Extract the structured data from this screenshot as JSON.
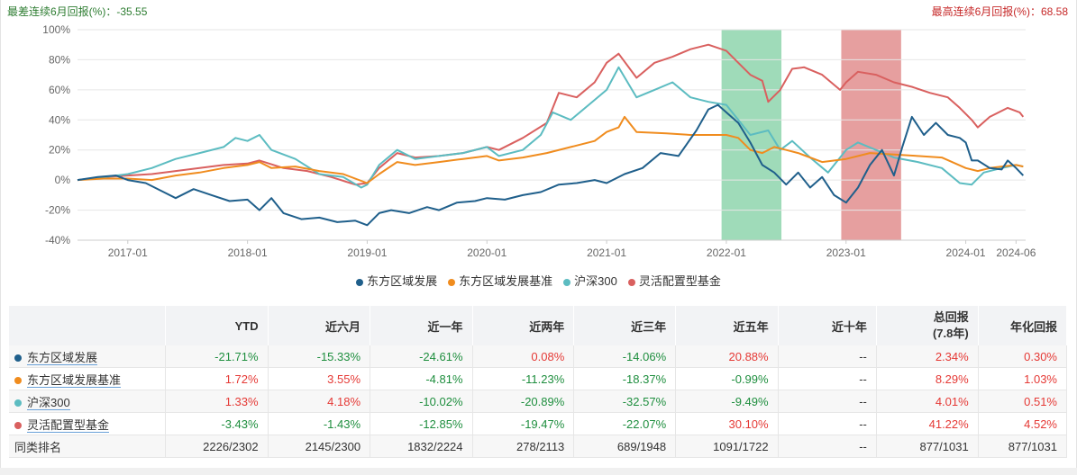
{
  "banner": {
    "worst": "最差连续6月回报(%)：-35.55",
    "best": "最高连续6月回报(%)：68.58"
  },
  "chart_data": {
    "type": "line",
    "xlabel": "",
    "ylabel": "",
    "ylim": [
      -40,
      100
    ],
    "yticks": [
      "100%",
      "80%",
      "60%",
      "40%",
      "20%",
      "0%",
      "-20%",
      "-40%"
    ],
    "ytick_values": [
      100,
      80,
      60,
      40,
      20,
      0,
      -20,
      -40
    ],
    "xticks": [
      "2017-01",
      "2018-01",
      "2019-01",
      "2020-01",
      "2021-01",
      "2022-01",
      "2023-01",
      "2024-01",
      "2024-06"
    ],
    "xtick_values": [
      2017.0,
      2018.0,
      2019.0,
      2020.0,
      2021.0,
      2022.0,
      2023.0,
      2024.0,
      2024.42
    ],
    "x_range": [
      2016.58,
      2024.5
    ],
    "grid": true,
    "legend": "bottom",
    "highlight_bands": [
      {
        "kind": "best",
        "x0": 2021.96,
        "x1": 2022.46,
        "color": "#7fcfa1"
      },
      {
        "kind": "worst",
        "x0": 2022.96,
        "x1": 2023.46,
        "color": "#de7f7f"
      }
    ],
    "series": [
      {
        "name": "东方区域发展",
        "color": "#1f5f8b",
        "points": [
          [
            2016.58,
            0
          ],
          [
            2016.75,
            2
          ],
          [
            2016.9,
            3
          ],
          [
            2017.0,
            0
          ],
          [
            2017.15,
            -2
          ],
          [
            2017.3,
            -8
          ],
          [
            2017.4,
            -12
          ],
          [
            2017.55,
            -6
          ],
          [
            2017.7,
            -10
          ],
          [
            2017.85,
            -14
          ],
          [
            2018.0,
            -13
          ],
          [
            2018.1,
            -20
          ],
          [
            2018.2,
            -12
          ],
          [
            2018.3,
            -22
          ],
          [
            2018.45,
            -26
          ],
          [
            2018.6,
            -25
          ],
          [
            2018.75,
            -28
          ],
          [
            2018.9,
            -27
          ],
          [
            2019.0,
            -30
          ],
          [
            2019.1,
            -22
          ],
          [
            2019.2,
            -20
          ],
          [
            2019.35,
            -22
          ],
          [
            2019.5,
            -18
          ],
          [
            2019.6,
            -20
          ],
          [
            2019.75,
            -15
          ],
          [
            2019.9,
            -14
          ],
          [
            2020.0,
            -12
          ],
          [
            2020.15,
            -13
          ],
          [
            2020.3,
            -10
          ],
          [
            2020.45,
            -8
          ],
          [
            2020.6,
            -3
          ],
          [
            2020.75,
            -2
          ],
          [
            2020.9,
            0
          ],
          [
            2021.0,
            -2
          ],
          [
            2021.15,
            4
          ],
          [
            2021.3,
            8
          ],
          [
            2021.45,
            18
          ],
          [
            2021.6,
            16
          ],
          [
            2021.75,
            33
          ],
          [
            2021.85,
            47
          ],
          [
            2021.93,
            50
          ],
          [
            2022.0,
            45
          ],
          [
            2022.1,
            38
          ],
          [
            2022.2,
            25
          ],
          [
            2022.3,
            10
          ],
          [
            2022.4,
            5
          ],
          [
            2022.5,
            -3
          ],
          [
            2022.6,
            5
          ],
          [
            2022.7,
            -5
          ],
          [
            2022.8,
            2
          ],
          [
            2022.9,
            -10
          ],
          [
            2023.0,
            -15
          ],
          [
            2023.1,
            -5
          ],
          [
            2023.2,
            10
          ],
          [
            2023.3,
            20
          ],
          [
            2023.4,
            3
          ],
          [
            2023.47,
            22
          ],
          [
            2023.55,
            42
          ],
          [
            2023.65,
            30
          ],
          [
            2023.75,
            38
          ],
          [
            2023.85,
            30
          ],
          [
            2023.95,
            28
          ],
          [
            2024.0,
            25
          ],
          [
            2024.05,
            13
          ],
          [
            2024.1,
            13
          ],
          [
            2024.2,
            8
          ],
          [
            2024.3,
            7
          ],
          [
            2024.35,
            13
          ],
          [
            2024.42,
            8
          ],
          [
            2024.48,
            3
          ]
        ]
      },
      {
        "name": "东方区域发展基准",
        "color": "#f08c1e",
        "points": [
          [
            2016.58,
            0
          ],
          [
            2016.8,
            1
          ],
          [
            2017.0,
            1
          ],
          [
            2017.2,
            0
          ],
          [
            2017.4,
            3
          ],
          [
            2017.6,
            5
          ],
          [
            2017.8,
            8
          ],
          [
            2018.0,
            10
          ],
          [
            2018.1,
            12
          ],
          [
            2018.2,
            8
          ],
          [
            2018.4,
            9
          ],
          [
            2018.6,
            6
          ],
          [
            2018.8,
            4
          ],
          [
            2019.0,
            -2
          ],
          [
            2019.1,
            4
          ],
          [
            2019.25,
            12
          ],
          [
            2019.4,
            10
          ],
          [
            2019.6,
            12
          ],
          [
            2019.8,
            14
          ],
          [
            2020.0,
            16
          ],
          [
            2020.1,
            13
          ],
          [
            2020.3,
            15
          ],
          [
            2020.5,
            18
          ],
          [
            2020.7,
            22
          ],
          [
            2020.9,
            26
          ],
          [
            2021.0,
            32
          ],
          [
            2021.1,
            35
          ],
          [
            2021.15,
            42
          ],
          [
            2021.25,
            32
          ],
          [
            2021.5,
            31
          ],
          [
            2021.7,
            30
          ],
          [
            2021.9,
            30
          ],
          [
            2022.0,
            30
          ],
          [
            2022.1,
            28
          ],
          [
            2022.2,
            20
          ],
          [
            2022.3,
            18
          ],
          [
            2022.4,
            22
          ],
          [
            2022.5,
            20
          ],
          [
            2022.6,
            18
          ],
          [
            2022.8,
            12
          ],
          [
            2023.0,
            14
          ],
          [
            2023.2,
            18
          ],
          [
            2023.4,
            17
          ],
          [
            2023.6,
            16
          ],
          [
            2023.8,
            15
          ],
          [
            2024.0,
            8
          ],
          [
            2024.1,
            6
          ],
          [
            2024.2,
            8
          ],
          [
            2024.3,
            9
          ],
          [
            2024.42,
            10
          ],
          [
            2024.48,
            9
          ]
        ]
      },
      {
        "name": "沪深300",
        "color": "#5cbcc1",
        "points": [
          [
            2016.58,
            0
          ],
          [
            2016.8,
            2
          ],
          [
            2017.0,
            4
          ],
          [
            2017.2,
            8
          ],
          [
            2017.4,
            14
          ],
          [
            2017.6,
            18
          ],
          [
            2017.8,
            22
          ],
          [
            2017.9,
            28
          ],
          [
            2018.0,
            26
          ],
          [
            2018.1,
            30
          ],
          [
            2018.2,
            20
          ],
          [
            2018.4,
            14
          ],
          [
            2018.6,
            4
          ],
          [
            2018.8,
            2
          ],
          [
            2018.95,
            -5
          ],
          [
            2019.0,
            -3
          ],
          [
            2019.1,
            10
          ],
          [
            2019.25,
            20
          ],
          [
            2019.4,
            14
          ],
          [
            2019.6,
            16
          ],
          [
            2019.8,
            18
          ],
          [
            2020.0,
            22
          ],
          [
            2020.1,
            16
          ],
          [
            2020.3,
            20
          ],
          [
            2020.45,
            30
          ],
          [
            2020.55,
            45
          ],
          [
            2020.7,
            40
          ],
          [
            2020.85,
            50
          ],
          [
            2021.0,
            60
          ],
          [
            2021.1,
            75
          ],
          [
            2021.25,
            55
          ],
          [
            2021.4,
            60
          ],
          [
            2021.55,
            65
          ],
          [
            2021.7,
            55
          ],
          [
            2021.85,
            52
          ],
          [
            2022.0,
            50
          ],
          [
            2022.1,
            40
          ],
          [
            2022.2,
            30
          ],
          [
            2022.35,
            33
          ],
          [
            2022.45,
            20
          ],
          [
            2022.55,
            26
          ],
          [
            2022.7,
            15
          ],
          [
            2022.85,
            5
          ],
          [
            2023.0,
            20
          ],
          [
            2023.1,
            25
          ],
          [
            2023.25,
            20
          ],
          [
            2023.4,
            15
          ],
          [
            2023.6,
            12
          ],
          [
            2023.8,
            8
          ],
          [
            2023.95,
            -2
          ],
          [
            2024.05,
            -3
          ],
          [
            2024.15,
            5
          ],
          [
            2024.3,
            8
          ],
          [
            2024.42,
            10
          ],
          [
            2024.48,
            9
          ]
        ]
      },
      {
        "name": "灵活配置型基金",
        "color": "#d9605f",
        "points": [
          [
            2016.58,
            0
          ],
          [
            2016.8,
            2
          ],
          [
            2017.0,
            3
          ],
          [
            2017.2,
            4
          ],
          [
            2017.4,
            6
          ],
          [
            2017.6,
            8
          ],
          [
            2017.8,
            10
          ],
          [
            2018.0,
            11
          ],
          [
            2018.1,
            13
          ],
          [
            2018.3,
            8
          ],
          [
            2018.5,
            6
          ],
          [
            2018.7,
            2
          ],
          [
            2018.9,
            -3
          ],
          [
            2019.0,
            -2
          ],
          [
            2019.1,
            8
          ],
          [
            2019.25,
            18
          ],
          [
            2019.4,
            15
          ],
          [
            2019.6,
            16
          ],
          [
            2019.8,
            18
          ],
          [
            2020.0,
            22
          ],
          [
            2020.1,
            20
          ],
          [
            2020.3,
            28
          ],
          [
            2020.5,
            38
          ],
          [
            2020.6,
            58
          ],
          [
            2020.75,
            55
          ],
          [
            2020.9,
            65
          ],
          [
            2021.0,
            78
          ],
          [
            2021.1,
            84
          ],
          [
            2021.25,
            68
          ],
          [
            2021.4,
            78
          ],
          [
            2021.55,
            82
          ],
          [
            2021.7,
            87
          ],
          [
            2021.85,
            90
          ],
          [
            2022.0,
            86
          ],
          [
            2022.1,
            78
          ],
          [
            2022.2,
            70
          ],
          [
            2022.3,
            66
          ],
          [
            2022.35,
            52
          ],
          [
            2022.45,
            60
          ],
          [
            2022.55,
            74
          ],
          [
            2022.65,
            75
          ],
          [
            2022.8,
            70
          ],
          [
            2022.95,
            60
          ],
          [
            2023.0,
            65
          ],
          [
            2023.1,
            72
          ],
          [
            2023.25,
            70
          ],
          [
            2023.4,
            65
          ],
          [
            2023.55,
            62
          ],
          [
            2023.7,
            58
          ],
          [
            2023.85,
            55
          ],
          [
            2023.95,
            48
          ],
          [
            2024.05,
            40
          ],
          [
            2024.1,
            35
          ],
          [
            2024.2,
            42
          ],
          [
            2024.35,
            48
          ],
          [
            2024.45,
            45
          ],
          [
            2024.48,
            42
          ]
        ]
      }
    ]
  },
  "table": {
    "headers": [
      "",
      "YTD",
      "近六月",
      "近一年",
      "近两年",
      "近三年",
      "近五年",
      "近十年",
      "总回报",
      "(7.8年)",
      "年化回报"
    ],
    "rows": [
      {
        "name": "东方区域发展",
        "color": "#1f5f8b",
        "values": [
          "-21.71%",
          "-15.33%",
          "-24.61%",
          "0.08%",
          "-14.06%",
          "20.88%",
          "--",
          "2.34%",
          "0.30%"
        ]
      },
      {
        "name": "东方区域发展基准",
        "color": "#f08c1e",
        "values": [
          "1.72%",
          "3.55%",
          "-4.81%",
          "-11.23%",
          "-18.37%",
          "-0.99%",
          "--",
          "8.29%",
          "1.03%"
        ]
      },
      {
        "name": "沪深300",
        "color": "#5cbcc1",
        "values": [
          "1.33%",
          "4.18%",
          "-10.02%",
          "-20.89%",
          "-32.57%",
          "-9.49%",
          "--",
          "4.01%",
          "0.51%"
        ]
      },
      {
        "name": "灵活配置型基金",
        "color": "#d9605f",
        "values": [
          "-3.43%",
          "-1.43%",
          "-12.85%",
          "-19.47%",
          "-22.07%",
          "30.10%",
          "--",
          "41.22%",
          "4.52%"
        ]
      }
    ],
    "rank_row": {
      "name": "同类排名",
      "values": [
        "2226/2302",
        "2145/2300",
        "1832/2224",
        "278/2113",
        "689/1948",
        "1091/1722",
        "--",
        "877/1031",
        "877/1031"
      ]
    }
  }
}
